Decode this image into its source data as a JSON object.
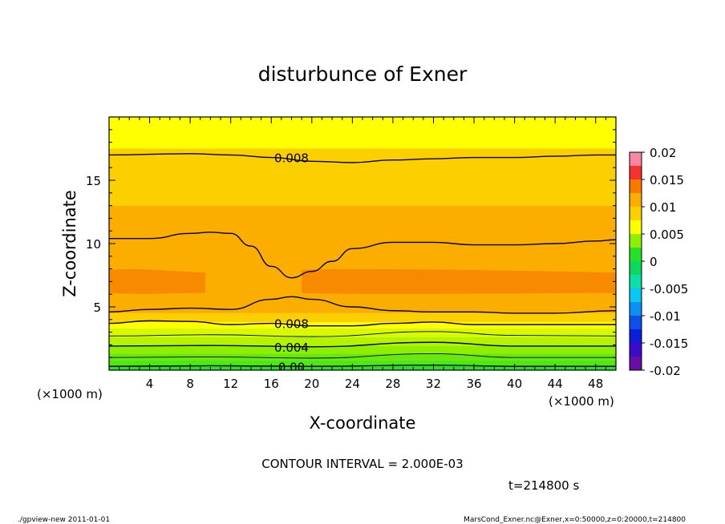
{
  "chart_data": {
    "type": "heatmap",
    "title": "disturbunce of Exner",
    "xlabel": "X-coordinate",
    "ylabel": "Z-coordinate",
    "x_unit": "(×1000 m)",
    "y_unit": "(×1000 m)",
    "xlim": [
      0,
      50
    ],
    "ylim": [
      0,
      20
    ],
    "x_ticks": [
      4,
      8,
      12,
      16,
      20,
      24,
      28,
      32,
      36,
      40,
      44,
      48
    ],
    "y_ticks": [
      5,
      10,
      15
    ],
    "colorbar": {
      "ticks": [
        "0.02",
        "0.015",
        "0.01",
        "0.005",
        "0",
        "-0.005",
        "-0.01",
        "-0.015",
        "-0.02"
      ],
      "levels": [
        {
          "from": -0.02,
          "to": -0.0175,
          "color": "#6a0ca8"
        },
        {
          "from": -0.0175,
          "to": -0.015,
          "color": "#3a0cc8"
        },
        {
          "from": -0.015,
          "to": -0.0125,
          "color": "#0c1cd8"
        },
        {
          "from": -0.0125,
          "to": -0.01,
          "color": "#0c50e8"
        },
        {
          "from": -0.01,
          "to": -0.0075,
          "color": "#0c90f0"
        },
        {
          "from": -0.0075,
          "to": -0.005,
          "color": "#0cc8f0"
        },
        {
          "from": -0.005,
          "to": -0.0025,
          "color": "#0ce0a8"
        },
        {
          "from": -0.0025,
          "to": 0.0,
          "color": "#0cd860"
        },
        {
          "from": 0.0,
          "to": 0.0025,
          "color": "#28e028"
        },
        {
          "from": 0.0025,
          "to": 0.005,
          "color": "#8ef000"
        },
        {
          "from": 0.005,
          "to": 0.0075,
          "color": "#ffff00"
        },
        {
          "from": 0.0075,
          "to": 0.01,
          "color": "#fcd000"
        },
        {
          "from": 0.01,
          "to": 0.0125,
          "color": "#fcae00"
        },
        {
          "from": 0.0125,
          "to": 0.015,
          "color": "#f87800"
        },
        {
          "from": 0.015,
          "to": 0.0175,
          "color": "#f43030"
        },
        {
          "from": 0.0175,
          "to": 0.02,
          "color": "#f888a0"
        }
      ]
    },
    "field_bands": [
      {
        "z_from": 0.0,
        "z_to": 0.35,
        "color": "#28e028"
      },
      {
        "z_from": 0.35,
        "z_to": 0.8,
        "color": "#4ee814"
      },
      {
        "z_from": 0.8,
        "z_to": 1.3,
        "color": "#6ae80c"
      },
      {
        "z_from": 1.3,
        "z_to": 1.9,
        "color": "#8ef000"
      },
      {
        "z_from": 1.9,
        "z_to": 2.6,
        "color": "#b4f400"
      },
      {
        "z_from": 2.6,
        "z_to": 3.3,
        "color": "#d8fa00"
      },
      {
        "z_from": 3.3,
        "z_to": 3.8,
        "color": "#ffff00"
      },
      {
        "z_from": 3.8,
        "z_to": 4.5,
        "color": "#fcd000"
      },
      {
        "z_from": 4.5,
        "z_to": 13.0,
        "color": "#fcae00"
      },
      {
        "z_from": 13.0,
        "z_to": 17.5,
        "color": "#fcd000"
      },
      {
        "z_from": 17.5,
        "z_to": 20.0,
        "color": "#ffff00"
      }
    ],
    "max_region_color": "#f88a00",
    "contours": [
      {
        "level": 0.0,
        "label": "0.00",
        "x": [
          0,
          10,
          20,
          32,
          40,
          50
        ],
        "z": [
          0.3,
          0.35,
          0.3,
          0.4,
          0.3,
          0.3
        ]
      },
      {
        "level": 0.002,
        "label": "",
        "x": [
          0,
          10,
          20,
          32,
          40,
          50
        ],
        "z": [
          1.0,
          1.05,
          0.95,
          1.3,
          1.0,
          1.0
        ]
      },
      {
        "level": 0.004,
        "label": "0.004",
        "x": [
          0,
          10,
          20,
          32,
          40,
          50
        ],
        "z": [
          1.9,
          1.95,
          1.85,
          2.2,
          1.9,
          1.9
        ]
      },
      {
        "level": 0.006,
        "label": "",
        "x": [
          0,
          10,
          20,
          32,
          40,
          50
        ],
        "z": [
          2.7,
          2.8,
          2.65,
          3.05,
          2.75,
          2.7
        ]
      },
      {
        "level": 0.008,
        "label": "0.008",
        "x": [
          0,
          4,
          8,
          12,
          16,
          20,
          24,
          28,
          32,
          36,
          40,
          44,
          50
        ],
        "z": [
          3.7,
          3.9,
          3.85,
          3.6,
          3.7,
          3.5,
          3.5,
          3.7,
          3.8,
          3.6,
          3.6,
          3.6,
          3.6
        ]
      },
      {
        "level": 0.01,
        "label": "",
        "x": [
          0,
          4,
          8,
          12,
          16,
          18,
          20,
          24,
          28,
          32,
          36,
          40,
          44,
          50
        ],
        "z": [
          4.6,
          4.8,
          4.9,
          4.8,
          5.6,
          5.8,
          5.6,
          5.0,
          4.7,
          4.6,
          4.6,
          4.5,
          4.5,
          4.7
        ]
      },
      {
        "level": 0.01,
        "label": "",
        "x": [
          0,
          4,
          8,
          10,
          12,
          14,
          16,
          18,
          20,
          22,
          24,
          28,
          32,
          36,
          40,
          44,
          48,
          50
        ],
        "z": [
          10.4,
          10.4,
          10.8,
          10.9,
          10.8,
          9.8,
          8.2,
          7.3,
          7.8,
          8.6,
          9.6,
          10.1,
          10.1,
          9.9,
          9.9,
          10.0,
          10.2,
          10.3
        ]
      },
      {
        "level": 0.008,
        "label": "0.008",
        "x": [
          0,
          8,
          12,
          16,
          20,
          24,
          28,
          32,
          36,
          40,
          44,
          48,
          50
        ],
        "z": [
          17.0,
          17.1,
          17.0,
          16.8,
          16.5,
          16.4,
          16.6,
          16.7,
          16.8,
          16.8,
          16.9,
          17.0,
          17.0
        ]
      }
    ],
    "annotations": [
      "CONTOUR INTERVAL = 2.000E-03",
      "t=214800 s"
    ]
  },
  "footer": {
    "left": "./gpview-new   2011-01-01",
    "right": "MarsCond_Exner.nc@Exner,x=0:50000,z=0:20000,t=214800"
  }
}
